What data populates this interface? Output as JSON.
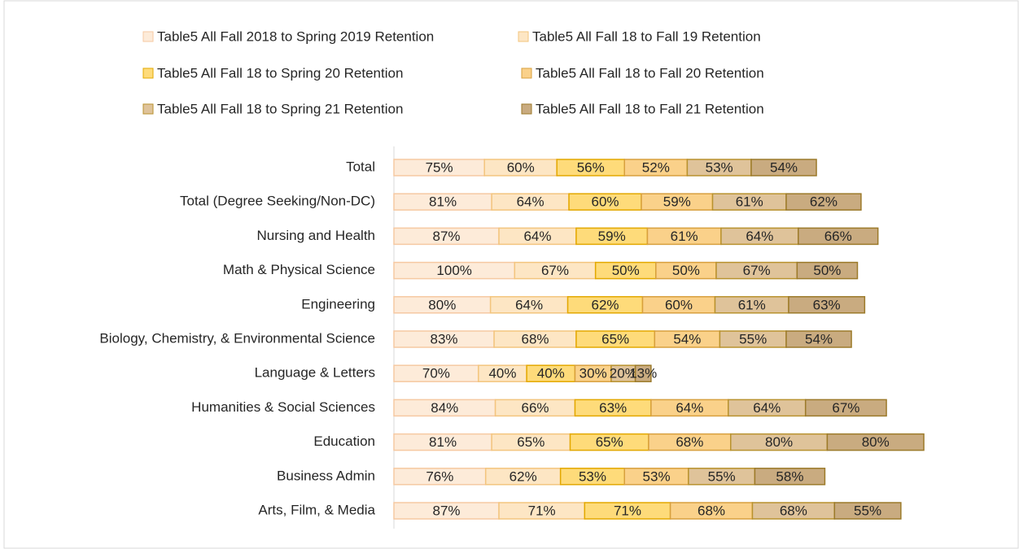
{
  "chart_data": {
    "type": "bar",
    "orientation": "horizontal",
    "stacked": true,
    "categories": [
      "Total",
      "Total (Degree Seeking/Non-DC)",
      "Nursing and Health",
      "Math & Physical Science",
      "Engineering",
      "Biology, Chemistry, & Environmental Science",
      "Language & Letters",
      "Humanities & Social Sciences",
      "Education",
      "Business Admin",
      "Arts, Film, & Media"
    ],
    "series": [
      {
        "name": "Table5 All Fall 2018 to Spring 2019 Retention",
        "color": "#fdebd9",
        "values": [
          75,
          81,
          87,
          100,
          80,
          83,
          70,
          84,
          81,
          76,
          87
        ],
        "value_labels": [
          "75%",
          "81%",
          "87%",
          "100%",
          "80%",
          "83%",
          "70%",
          "84%",
          "81%",
          "76%",
          "87%"
        ]
      },
      {
        "name": "Table5 All Fall 18 to Fall 19 Retention",
        "color": "#fde6c4",
        "values": [
          60,
          64,
          64,
          67,
          64,
          68,
          40,
          66,
          65,
          62,
          71
        ],
        "value_labels": [
          "60%",
          "64%",
          "64%",
          "67%",
          "64%",
          "68%",
          "40%",
          "66%",
          "65%",
          "62%",
          "71%"
        ]
      },
      {
        "name": "Table5 All Fall 18 to Spring 20 Retention",
        "color": "#fedb7a",
        "values": [
          56,
          60,
          59,
          50,
          62,
          65,
          40,
          63,
          65,
          53,
          71
        ],
        "value_labels": [
          "56%",
          "60%",
          "59%",
          "50%",
          "62%",
          "65%",
          "40%",
          "63%",
          "65%",
          "53%",
          "71%"
        ]
      },
      {
        "name": "Table5 All Fall 18 to Fall 20 Retention",
        "color": "#fad18a",
        "values": [
          52,
          59,
          61,
          50,
          60,
          54,
          30,
          64,
          68,
          53,
          68
        ],
        "value_labels": [
          "52%",
          "59%",
          "61%",
          "50%",
          "60%",
          "54%",
          "30%",
          "64%",
          "68%",
          "53%",
          "68%"
        ]
      },
      {
        "name": "Table5 All Fall 18 to Spring 21 Retention",
        "color": "#dfc39a",
        "values": [
          53,
          61,
          64,
          67,
          61,
          55,
          20,
          64,
          80,
          55,
          68
        ],
        "value_labels": [
          "53%",
          "61%",
          "64%",
          "67%",
          "61%",
          "55%",
          "20%",
          "64%",
          "80%",
          "55%",
          "68%"
        ]
      },
      {
        "name": "Table5 All Fall 18 to Fall 21 Retention",
        "color": "#c9ab80",
        "values": [
          54,
          62,
          66,
          50,
          63,
          54,
          13,
          67,
          80,
          58,
          55
        ],
        "value_labels": [
          "54%",
          "62%",
          "66%",
          "50%",
          "63%",
          "54%",
          "13%",
          "67%",
          "80%",
          "58%",
          "55%"
        ]
      }
    ]
  }
}
